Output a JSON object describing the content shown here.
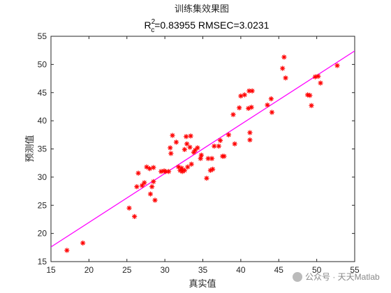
{
  "chart_data": {
    "type": "scatter",
    "title": "训练集效果图",
    "subtitle": {
      "r_base": "R",
      "r_sup": "2",
      "r_sub": "c",
      "text": "=0.83955  RMSEC=3.0231"
    },
    "xlabel": "真实值",
    "ylabel": "预测值",
    "xlim": [
      15,
      55
    ],
    "ylim": [
      15,
      55
    ],
    "xticks": [
      "15",
      "20",
      "25",
      "30",
      "35",
      "40",
      "45",
      "50",
      "55"
    ],
    "yticks": [
      "15",
      "20",
      "25",
      "30",
      "35",
      "40",
      "45",
      "50",
      "55"
    ],
    "grid": false,
    "marker_color": "#ff0000",
    "fit_line_color": "#ff00ff",
    "fit_line": {
      "x": [
        15,
        55
      ],
      "y": [
        17.6,
        52.4
      ]
    },
    "points": [
      [
        17.1,
        17.0
      ],
      [
        19.2,
        18.3
      ],
      [
        25.3,
        24.5
      ],
      [
        26.0,
        23.0
      ],
      [
        26.3,
        28.3
      ],
      [
        26.5,
        30.7
      ],
      [
        27.0,
        28.5
      ],
      [
        27.3,
        29.0
      ],
      [
        27.6,
        31.8
      ],
      [
        28.0,
        31.5
      ],
      [
        28.1,
        27.0
      ],
      [
        28.3,
        28.3
      ],
      [
        28.5,
        29.2
      ],
      [
        28.5,
        31.7
      ],
      [
        28.7,
        25.9
      ],
      [
        29.5,
        31.0
      ],
      [
        29.9,
        31.1
      ],
      [
        30.1,
        31.0
      ],
      [
        30.5,
        31.0
      ],
      [
        30.7,
        35.2
      ],
      [
        30.8,
        34.2
      ],
      [
        31.0,
        37.4
      ],
      [
        31.5,
        36.2
      ],
      [
        31.8,
        31.8
      ],
      [
        32.0,
        31.2
      ],
      [
        32.2,
        31.6
      ],
      [
        32.3,
        31.0
      ],
      [
        32.6,
        31.2
      ],
      [
        32.6,
        34.9
      ],
      [
        32.8,
        37.2
      ],
      [
        32.9,
        35.9
      ],
      [
        33.0,
        31.8
      ],
      [
        33.3,
        35.3
      ],
      [
        33.4,
        37.3
      ],
      [
        33.5,
        32.3
      ],
      [
        33.8,
        34.4
      ],
      [
        34.0,
        34.8
      ],
      [
        34.3,
        35.2
      ],
      [
        34.7,
        33.3
      ],
      [
        34.8,
        33.9
      ],
      [
        35.5,
        29.8
      ],
      [
        35.7,
        33.3
      ],
      [
        36.0,
        31.2
      ],
      [
        36.2,
        33.3
      ],
      [
        36.3,
        31.4
      ],
      [
        36.5,
        35.5
      ],
      [
        37.1,
        35.5
      ],
      [
        37.3,
        36.5
      ],
      [
        37.6,
        33.7
      ],
      [
        37.8,
        33.7
      ],
      [
        38.4,
        37.5
      ],
      [
        39.0,
        41.1
      ],
      [
        39.2,
        35.9
      ],
      [
        39.8,
        42.3
      ],
      [
        40.0,
        44.4
      ],
      [
        40.5,
        44.6
      ],
      [
        41.0,
        42.2
      ],
      [
        41.1,
        45.3
      ],
      [
        41.2,
        37.9
      ],
      [
        41.2,
        36.6
      ],
      [
        41.4,
        42.4
      ],
      [
        41.5,
        45.3
      ],
      [
        43.5,
        42.8
      ],
      [
        44.1,
        41.5
      ],
      [
        44.0,
        43.9
      ],
      [
        45.5,
        49.3
      ],
      [
        45.7,
        51.3
      ],
      [
        45.9,
        47.6
      ],
      [
        48.8,
        44.6
      ],
      [
        49.1,
        44.5
      ],
      [
        49.3,
        42.7
      ],
      [
        49.8,
        47.8
      ],
      [
        50.2,
        47.9
      ],
      [
        50.5,
        46.7
      ],
      [
        52.7,
        49.8
      ]
    ]
  },
  "watermark": "公众号 · 天天Matlab"
}
